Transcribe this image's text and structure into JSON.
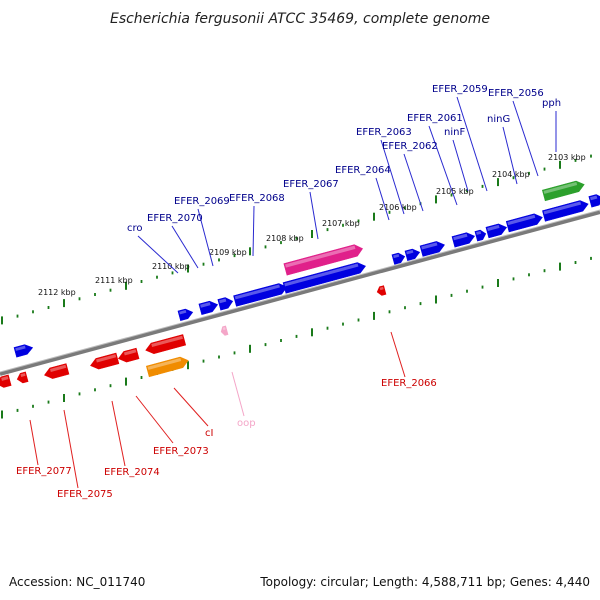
{
  "title": "Escherichia fergusonii ATCC 35469, complete genome",
  "footer": {
    "accession": "Accession: NC_011740",
    "summary": "Topology: circular; Length: 4,588,711 bp; Genes: 4,440"
  },
  "colors": {
    "forward_gene": "#0000e0",
    "reverse_gene": "#e00000",
    "magenta_gene": "#e0208a",
    "green_gene": "#2ca02c",
    "orange_gene": "#f08c00",
    "pale_pink_gene": "#f4a6c8",
    "tick": "#1a7a1a",
    "backbone": "#8a8a8a",
    "top_label": "#00008b",
    "bottom_label": "#cc0000"
  },
  "scale_labels": [
    "2112 kbp",
    "2111 kbp",
    "2110 kbp",
    "2109 kbp",
    "2108 kbp",
    "2107 kbp",
    "2106 kbp",
    "2105 kbp",
    "2104 kbp",
    "2103 kbp"
  ],
  "top_labels": [
    "cro",
    "EFER_2070",
    "EFER_2069",
    "EFER_2068",
    "EFER_2067",
    "EFER_2064",
    "EFER_2063",
    "EFER_2062",
    "EFER_2061",
    "ninF",
    "EFER_2059",
    "ninG",
    "EFER_2056",
    "pph"
  ],
  "bottom_labels": [
    "EFER_2066",
    "EFER_2077",
    "EFER_2075",
    "EFER_2074",
    "EFER_2073",
    "cI",
    "oop"
  ]
}
